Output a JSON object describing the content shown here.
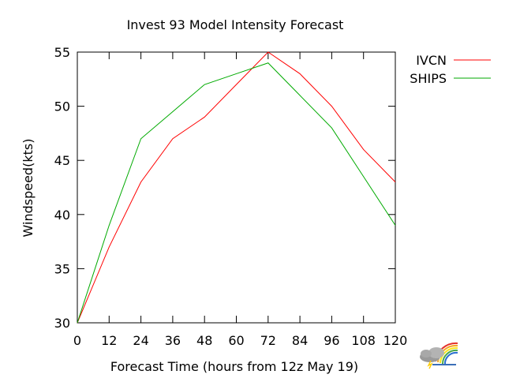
{
  "chart_data": {
    "type": "line",
    "title": "Invest 93 Model Intensity Forecast",
    "xlabel": "Forecast Time (hours from 12z May 19)",
    "ylabel": "Windspeed(kts)",
    "xlim": [
      0,
      120
    ],
    "ylim": [
      30,
      55
    ],
    "x_ticks": [
      0,
      12,
      24,
      36,
      48,
      60,
      72,
      84,
      96,
      108,
      120
    ],
    "y_ticks": [
      30,
      35,
      40,
      45,
      50,
      55
    ],
    "grid": false,
    "legend": "outside-top-right",
    "series": [
      {
        "name": "IVCN",
        "color": "#ff0000",
        "x": [
          0,
          12,
          24,
          36,
          48,
          60,
          72,
          84,
          96,
          108,
          120
        ],
        "y": [
          30,
          37,
          43,
          47,
          49,
          52,
          55,
          53,
          50,
          46,
          43
        ]
      },
      {
        "name": "SHIPS",
        "color": "#00aa00",
        "x": [
          0,
          12,
          24,
          36,
          48,
          60,
          72,
          84,
          96,
          108,
          120
        ],
        "y": [
          30,
          39,
          47,
          49.5,
          52,
          53,
          54,
          51,
          48,
          43.5,
          39
        ]
      }
    ]
  },
  "logo": {
    "icon": "weather-cloud-rainbow-logo"
  }
}
